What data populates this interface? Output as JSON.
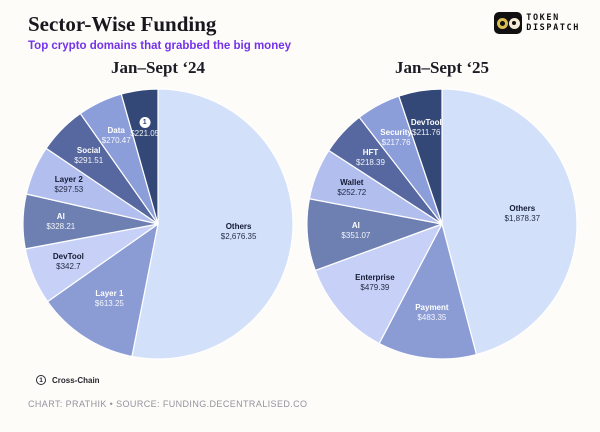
{
  "header": {
    "title": "Sector-Wise Funding",
    "subtitle": "Top crypto domains that grabbed the big money",
    "subtitle_color": "#7433ea",
    "logo_line1": "TOKEN",
    "logo_line2": "DISPATCH"
  },
  "chart_data": [
    {
      "type": "pie",
      "title": "Jan–Sept ‘24",
      "legend_position": "labels-inside-slices",
      "start_angle_deg": 0,
      "direction": "clockwise",
      "slices": [
        {
          "label": "Others",
          "value": 2676.35,
          "value_label": "$2,676.35",
          "color": "#d3e0fa",
          "text_color": "#141a33"
        },
        {
          "label": "Layer 1",
          "value": 613.25,
          "value_label": "$613.25",
          "color": "#8b9cd4",
          "text_color": "#ffffff"
        },
        {
          "label": "DevTool",
          "value": 342.7,
          "value_label": "$342.7",
          "color": "#c7d1f7",
          "text_color": "#141a33"
        },
        {
          "label": "AI",
          "value": 328.21,
          "value_label": "$328.21",
          "color": "#6e7fb1",
          "text_color": "#ffffff"
        },
        {
          "label": "Layer 2",
          "value": 297.53,
          "value_label": "$297.53",
          "color": "#b2bfee",
          "text_color": "#141a33"
        },
        {
          "label": "Social",
          "value": 291.51,
          "value_label": "$291.51",
          "color": "#56689f",
          "text_color": "#ffffff"
        },
        {
          "label": "Data",
          "value": 270.47,
          "value_label": "$270.47",
          "color": "#8c9ed9",
          "text_color": "#ffffff"
        },
        {
          "label": "Cross-Chain",
          "value": 221.05,
          "value_label": "$221.05",
          "color": "#344878",
          "text_color": "#ffffff",
          "marker": "1"
        }
      ]
    },
    {
      "type": "pie",
      "title": "Jan–Sept ‘25",
      "legend_position": "labels-inside-slices",
      "start_angle_deg": 0,
      "direction": "clockwise",
      "slices": [
        {
          "label": "Others",
          "value": 1878.37,
          "value_label": "$1,878.37",
          "color": "#d3e0fa",
          "text_color": "#141a33"
        },
        {
          "label": "Payment",
          "value": 483.35,
          "value_label": "$483.35",
          "color": "#8b9cd4",
          "text_color": "#ffffff"
        },
        {
          "label": "Enterprise",
          "value": 479.39,
          "value_label": "$479.39",
          "color": "#c7d1f7",
          "text_color": "#141a33"
        },
        {
          "label": "AI",
          "value": 351.07,
          "value_label": "$351.07",
          "color": "#6e7fb1",
          "text_color": "#ffffff"
        },
        {
          "label": "Wallet",
          "value": 252.72,
          "value_label": "$252.72",
          "color": "#b2bfee",
          "text_color": "#141a33"
        },
        {
          "label": "HFT",
          "value": 218.39,
          "value_label": "$218.39",
          "color": "#56689f",
          "text_color": "#ffffff"
        },
        {
          "label": "Security",
          "value": 217.76,
          "value_label": "$217.76",
          "color": "#8c9ed9",
          "text_color": "#ffffff"
        },
        {
          "label": "DevTool",
          "value": 211.76,
          "value_label": "$211.76",
          "color": "#344878",
          "text_color": "#ffffff"
        }
      ]
    }
  ],
  "footnote": {
    "marker": "1",
    "label": "Cross-Chain"
  },
  "footer": "CHART: PRATHIK • SOURCE: FUNDING.DECENTRALISED.CO"
}
